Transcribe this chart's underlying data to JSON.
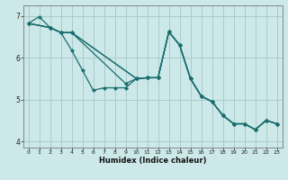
{
  "xlabel": "Humidex (Indice chaleur)",
  "background_color": "#cce8e8",
  "grid_color": "#aacccc",
  "line_color": "#1a6e6e",
  "xlim": [
    -0.5,
    23.5
  ],
  "ylim": [
    3.85,
    7.25
  ],
  "yticks": [
    4,
    5,
    6,
    7
  ],
  "ytick_labels": [
    "4",
    "5",
    "6",
    "7"
  ],
  "xticks": [
    0,
    1,
    2,
    3,
    4,
    5,
    6,
    7,
    8,
    9,
    10,
    11,
    12,
    13,
    14,
    15,
    16,
    17,
    18,
    19,
    20,
    21,
    22,
    23
  ],
  "lines": [
    {
      "x": [
        0,
        1,
        2,
        3,
        4,
        5,
        6,
        7,
        8,
        9,
        10,
        11,
        12,
        13,
        14,
        15,
        16,
        17,
        18,
        19,
        20,
        21,
        22,
        23
      ],
      "y": [
        6.82,
        6.98,
        6.72,
        6.6,
        6.18,
        5.7,
        5.22,
        5.28,
        5.28,
        5.28,
        5.5,
        5.52,
        5.52,
        6.62,
        6.3,
        5.5,
        5.08,
        4.95,
        4.62,
        4.42,
        4.42,
        4.28,
        4.5,
        4.42
      ]
    },
    {
      "x": [
        0,
        2,
        3,
        4,
        10,
        11,
        12,
        13,
        14,
        15,
        16,
        17,
        18,
        19,
        20,
        21,
        22,
        23
      ],
      "y": [
        6.82,
        6.72,
        6.6,
        6.6,
        5.5,
        5.52,
        5.52,
        6.62,
        6.3,
        5.5,
        5.08,
        4.95,
        4.62,
        4.42,
        4.42,
        4.28,
        4.5,
        4.42
      ]
    },
    {
      "x": [
        0,
        2,
        3,
        4,
        10,
        11,
        12,
        13,
        14,
        15,
        16,
        17,
        18,
        19,
        20,
        21,
        22,
        23
      ],
      "y": [
        6.82,
        6.72,
        6.6,
        6.6,
        5.5,
        5.52,
        5.52,
        6.62,
        6.3,
        5.5,
        5.08,
        4.95,
        4.62,
        4.42,
        4.42,
        4.28,
        4.5,
        4.42
      ]
    },
    {
      "x": [
        0,
        2,
        3,
        4,
        9,
        10,
        11,
        12,
        13,
        14,
        15,
        16,
        17,
        18,
        19,
        20,
        21,
        22,
        23
      ],
      "y": [
        6.82,
        6.72,
        6.6,
        6.6,
        5.38,
        5.5,
        5.52,
        5.52,
        6.62,
        6.3,
        5.5,
        5.08,
        4.95,
        4.62,
        4.42,
        4.42,
        4.28,
        4.5,
        4.42
      ]
    }
  ]
}
